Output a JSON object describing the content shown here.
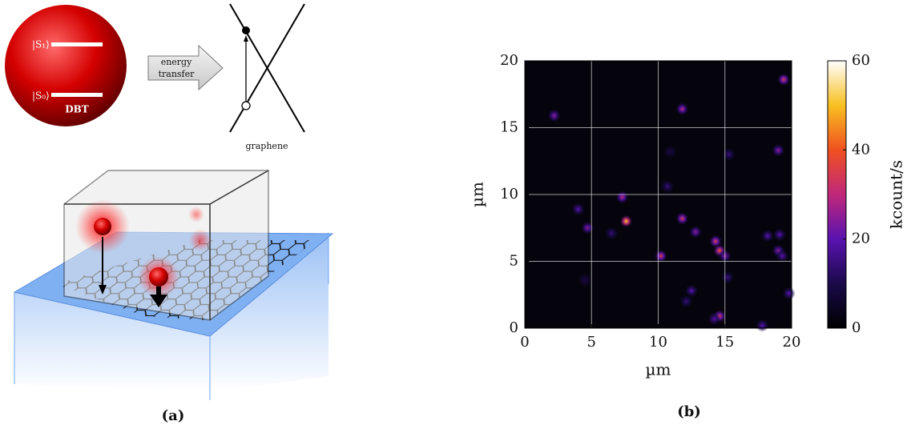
{
  "panel_a": {
    "ket_s1": "|S₁⟩",
    "ket_s0": "|S₀⟩",
    "molecule": "DBT",
    "arrow_label": [
      "energy",
      "transfer"
    ],
    "graphene": "graphene",
    "caption": "(a)"
  },
  "chart_data": {
    "type": "heatmap",
    "caption": "(b)",
    "xlabel": "µm",
    "ylabel": "µm",
    "colorbar_label": "kcount/s",
    "xlim": [
      0,
      20
    ],
    "ylim": [
      0,
      20
    ],
    "xticks": [
      0,
      5,
      10,
      15,
      20
    ],
    "yticks": [
      0,
      5,
      10,
      15,
      20
    ],
    "grid": true,
    "clim": [
      0,
      60
    ],
    "cticks": [
      0,
      20,
      40,
      60
    ],
    "colormap": [
      "#000000",
      "#1a0a4a",
      "#5a12b0",
      "#c0287a",
      "#f05020",
      "#f8c020",
      "#ffffff"
    ],
    "background": "#05040c",
    "x": [
      2.2,
      11.8,
      19.4,
      7.3,
      7.6,
      4.0,
      4.7,
      6.5,
      10.7,
      11.8,
      12.8,
      10.2,
      14.3,
      14.6,
      15.0,
      15.3,
      19.0,
      18.2,
      19.1,
      19.0,
      19.3,
      4.5,
      12.5,
      15.2,
      14.6,
      14.2,
      17.8,
      19.8,
      12.1,
      10.9
    ],
    "y": [
      15.9,
      16.4,
      18.6,
      9.8,
      8.0,
      8.9,
      7.5,
      7.1,
      10.6,
      8.2,
      7.2,
      5.4,
      6.5,
      5.8,
      5.4,
      13.0,
      13.3,
      6.9,
      7.0,
      5.8,
      5.4,
      3.6,
      2.8,
      3.8,
      0.9,
      0.7,
      0.2,
      2.6,
      2.0,
      13.2
    ],
    "values": [
      25,
      30,
      35,
      30,
      50,
      20,
      25,
      15,
      15,
      35,
      25,
      35,
      35,
      40,
      25,
      15,
      25,
      20,
      20,
      25,
      20,
      10,
      20,
      15,
      35,
      20,
      20,
      20,
      15,
      10
    ]
  }
}
